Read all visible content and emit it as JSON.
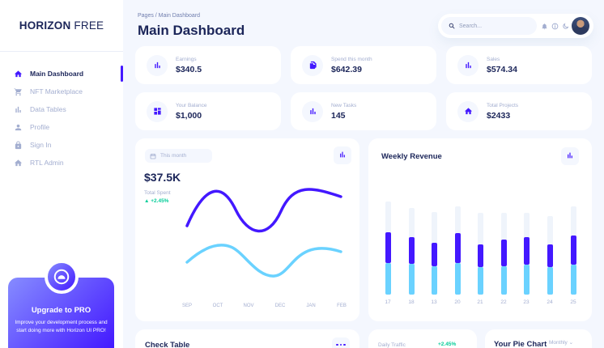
{
  "brand": {
    "bold": "HORIZON",
    "light": "FREE"
  },
  "sidebar": {
    "items": [
      {
        "label": "Main Dashboard",
        "icon": "home-icon",
        "active": true
      },
      {
        "label": "NFT Marketplace",
        "icon": "cart-icon",
        "active": false
      },
      {
        "label": "Data Tables",
        "icon": "bar-chart-icon",
        "active": false
      },
      {
        "label": "Profile",
        "icon": "user-icon",
        "active": false
      },
      {
        "label": "Sign In",
        "icon": "lock-icon",
        "active": false
      },
      {
        "label": "RTL Admin",
        "icon": "home-icon",
        "active": false
      }
    ],
    "promo": {
      "title": "Upgrade to PRO",
      "text": "Improve your development process and start doing more with Horizon UI PRO!"
    }
  },
  "header": {
    "breadcrumb": "Pages  /  Main Dashboard",
    "title": "Main Dashboard",
    "search_placeholder": "Search..."
  },
  "stats": [
    {
      "label": "Earnings",
      "value": "$340.5",
      "icon": "bar-chart-icon"
    },
    {
      "label": "Spend this month",
      "value": "$642.39",
      "icon": "documents-icon"
    },
    {
      "label": "Sales",
      "value": "$574.34",
      "icon": "bar-chart-icon"
    },
    {
      "label": "Your Balance",
      "value": "$1,000",
      "icon": "grid-icon"
    },
    {
      "label": "New Tasks",
      "value": "145",
      "icon": "bar-chart-icon"
    },
    {
      "label": "Total Projects",
      "value": "$2433",
      "icon": "home-icon"
    }
  ],
  "spent": {
    "chip": "This month",
    "value": "$37.5K",
    "label": "Total Spent",
    "change": "▲ +2.45%",
    "months": [
      "SEP",
      "OCT",
      "NOV",
      "DEC",
      "JAN",
      "FEB"
    ]
  },
  "weekly": {
    "title": "Weekly Revenue",
    "days": [
      "17",
      "18",
      "13",
      "20",
      "21",
      "22",
      "23",
      "24",
      "25"
    ],
    "colors": {
      "top": "#4318ff",
      "bottom": "#6ad2ff",
      "track": "#eff4fb"
    }
  },
  "bottom": {
    "check_title": "Check Table",
    "traffic_label": "Daily Traffic",
    "traffic_change": "+2.45%",
    "pie_title": "Your Pie Chart",
    "pie_select": "Monthly"
  },
  "colors": {
    "accent": "#4318ff",
    "text": "#1b2559",
    "muted": "#a3aed0",
    "line1": "#4318ff",
    "line2": "#6ad2ff",
    "green": "#05cd99"
  }
}
